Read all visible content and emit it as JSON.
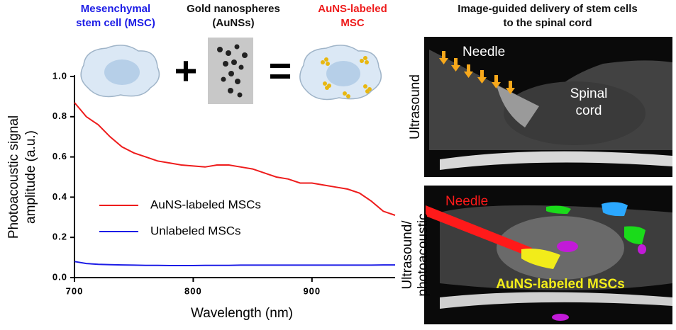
{
  "chart_data": {
    "type": "line",
    "xlabel": "Wavelength (nm)",
    "ylabel": [
      "Photoacoustic signal",
      "amplitude (a.u.)"
    ],
    "x": [
      700,
      710,
      720,
      730,
      740,
      750,
      760,
      770,
      780,
      790,
      800,
      810,
      820,
      830,
      840,
      850,
      860,
      870,
      880,
      890,
      900,
      910,
      920,
      930,
      940,
      950,
      960,
      970
    ],
    "series": [
      {
        "name": "AuNS-labeled MSCs",
        "color": "#ee1c1c",
        "values": [
          0.87,
          0.8,
          0.76,
          0.7,
          0.65,
          0.62,
          0.6,
          0.58,
          0.57,
          0.56,
          0.555,
          0.55,
          0.56,
          0.56,
          0.55,
          0.54,
          0.52,
          0.5,
          0.49,
          0.47,
          0.47,
          0.46,
          0.45,
          0.44,
          0.42,
          0.38,
          0.33,
          0.31
        ]
      },
      {
        "name": "Unlabeled MSCs",
        "color": "#1c1ce6",
        "values": [
          0.08,
          0.07,
          0.066,
          0.064,
          0.063,
          0.062,
          0.061,
          0.061,
          0.06,
          0.06,
          0.06,
          0.061,
          0.061,
          0.061,
          0.062,
          0.062,
          0.062,
          0.062,
          0.062,
          0.062,
          0.062,
          0.062,
          0.062,
          0.062,
          0.062,
          0.062,
          0.063,
          0.063
        ]
      }
    ],
    "xlim": [
      700,
      970
    ],
    "xticks": [
      700,
      800,
      900
    ],
    "ylim": [
      0,
      1
    ],
    "yticks": [
      {
        "value": 0,
        "label": "0.0"
      },
      0.2,
      0.4,
      0.6,
      0.8,
      {
        "value": 1,
        "label": "1.0"
      }
    ],
    "grid": false
  },
  "illustration": {
    "cell": [
      "Mesenchymal",
      "stem cell (MSC)"
    ],
    "nanospheres": [
      "Gold nanospheres",
      "(AuNSs)"
    ],
    "labeled": [
      "AuNS-labeled",
      "MSC"
    ],
    "plus": "+",
    "equals": "="
  },
  "images": {
    "title": [
      "Image-guided delivery of stem cells",
      "to the spinal cord"
    ],
    "top_label": "Ultrasound",
    "top_needle": "Needle",
    "top_cord": [
      "Spinal",
      "cord"
    ],
    "bottom_label": [
      "Ultrasound/",
      "photoacoustic"
    ],
    "bottom_needle": "Needle",
    "bottom_cells": "AuNS-labeled MSCs"
  }
}
